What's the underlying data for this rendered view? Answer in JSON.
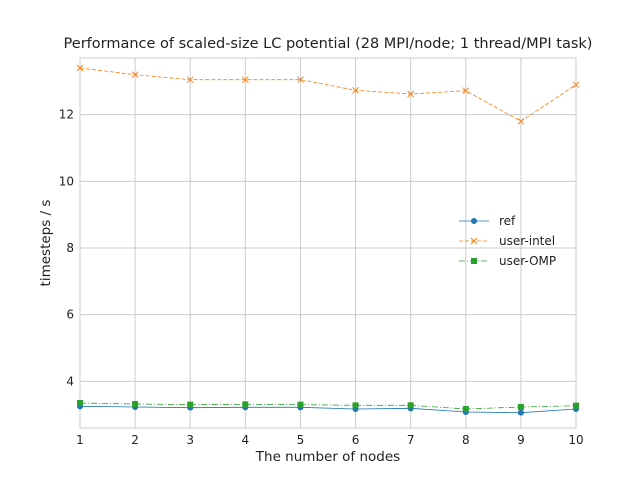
{
  "chart_data": {
    "type": "line",
    "title": "Performance of scaled-size LC potential (28 MPI/node; 1 thread/MPI task)",
    "xlabel": "The number of nodes",
    "ylabel": "timesteps / s",
    "x": [
      1,
      2,
      3,
      4,
      5,
      6,
      7,
      8,
      9,
      10
    ],
    "xticks": [
      "1",
      "2",
      "3",
      "4",
      "5",
      "6",
      "7",
      "8",
      "9",
      "10"
    ],
    "yticks": [
      "4",
      "6",
      "8",
      "10",
      "12"
    ],
    "xlim": [
      1,
      10
    ],
    "ylim": [
      2.6,
      13.7
    ],
    "grid": true,
    "legend_position": "center-right",
    "series": [
      {
        "name": "ref",
        "color": "#1f77b4",
        "marker": "circle",
        "linestyle": "solid",
        "values": [
          3.25,
          3.23,
          3.21,
          3.22,
          3.22,
          3.17,
          3.19,
          3.08,
          3.06,
          3.17
        ]
      },
      {
        "name": "user-intel",
        "color": "#ff7f0e",
        "marker": "x",
        "linestyle": "dashed",
        "values": [
          13.4,
          13.2,
          13.05,
          13.05,
          13.05,
          12.73,
          12.62,
          12.72,
          11.8,
          12.9
        ]
      },
      {
        "name": "user-OMP",
        "color": "#2ca02c",
        "marker": "square",
        "linestyle": "dashdot",
        "values": [
          3.35,
          3.32,
          3.3,
          3.31,
          3.3,
          3.28,
          3.28,
          3.17,
          3.23,
          3.27
        ]
      }
    ]
  }
}
